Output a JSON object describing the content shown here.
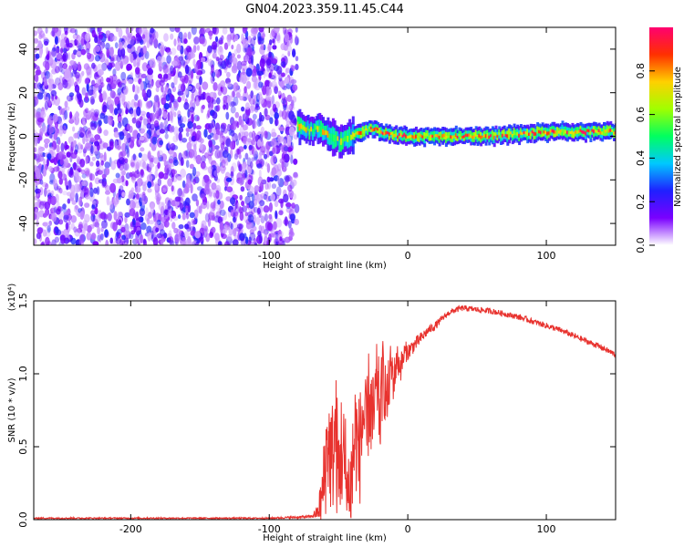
{
  "figure": {
    "title": "GN04.2023.359.11.45.C44"
  },
  "chart_data": [
    {
      "type": "heatmap",
      "xlabel": "Height of straight line (km)",
      "ylabel": "Frequency (Hz)",
      "xlim": [
        -270,
        150
      ],
      "ylim": [
        -50,
        50
      ],
      "x_ticks": [
        -200,
        -100,
        0,
        100
      ],
      "y_ticks": [
        -40,
        -20,
        0,
        20,
        40
      ],
      "noise_region_x": [
        -270,
        -80
      ],
      "signal_track": {
        "x": [
          -80,
          -75,
          -70,
          -65,
          -60,
          -55,
          -50,
          -45,
          -40,
          -35,
          -30,
          -25,
          -20,
          -15,
          -10,
          -5,
          0,
          20,
          40,
          60,
          80,
          100,
          120,
          150
        ],
        "freq": [
          6,
          4,
          3,
          4,
          2,
          0,
          -2,
          -1,
          1,
          2,
          3,
          3,
          2,
          1,
          0,
          0,
          0,
          0,
          0,
          0,
          1,
          2,
          2,
          2
        ]
      },
      "colorbar": {
        "label": "Normalized spectral amplitude",
        "range": [
          0,
          1
        ],
        "ticks": [
          0.0,
          0.2,
          0.4,
          0.6,
          0.8
        ],
        "colors": [
          "#ffffff",
          "#7a00ff",
          "#1f20ff",
          "#00c8ff",
          "#00ff60",
          "#a0ff00",
          "#ffd000",
          "#ff3000",
          "#ff0070"
        ]
      },
      "grid": false
    },
    {
      "type": "line",
      "xlabel": "Height of straight line (km)",
      "ylabel": "SNR (10 * v/v)",
      "y_scale_label": "(x10⁴)",
      "xlim": [
        -270,
        150
      ],
      "ylim": [
        0,
        1.5
      ],
      "x_ticks": [
        -200,
        -100,
        0,
        100
      ],
      "y_ticks": [
        0.0,
        0.5,
        1.0,
        1.5
      ],
      "series": [
        {
          "color": "#e8322e",
          "x": [
            -270,
            -200,
            -100,
            -70,
            -65,
            -62,
            -60,
            -58,
            -55,
            -52,
            -50,
            -48,
            -45,
            -42,
            -40,
            -38,
            -35,
            -32,
            -30,
            -28,
            -25,
            -22,
            -20,
            -18,
            -15,
            -12,
            -10,
            -8,
            -5,
            -2,
            0,
            5,
            10,
            15,
            20,
            25,
            30,
            35,
            40,
            50,
            60,
            70,
            80,
            90,
            100,
            110,
            120,
            130,
            140,
            150
          ],
          "y": [
            0.01,
            0.01,
            0.01,
            0.02,
            0.05,
            0.15,
            0.3,
            0.55,
            0.4,
            0.6,
            0.25,
            0.5,
            0.3,
            0.1,
            0.35,
            0.6,
            0.45,
            0.75,
            0.5,
            0.85,
            0.65,
            0.95,
            0.7,
            1.0,
            0.8,
            1.05,
            0.95,
            1.1,
            1.05,
            1.15,
            1.15,
            1.2,
            1.25,
            1.3,
            1.33,
            1.38,
            1.42,
            1.44,
            1.45,
            1.44,
            1.43,
            1.41,
            1.39,
            1.36,
            1.33,
            1.3,
            1.26,
            1.22,
            1.18,
            1.13
          ],
          "noise_amplitude": [
            0.005,
            0.005,
            0.005,
            0.01,
            0.05,
            0.2,
            0.35,
            0.4,
            0.4,
            0.45,
            0.45,
            0.4,
            0.45,
            0.45,
            0.45,
            0.4,
            0.4,
            0.4,
            0.4,
            0.35,
            0.35,
            0.3,
            0.3,
            0.25,
            0.22,
            0.2,
            0.15,
            0.12,
            0.1,
            0.08,
            0.06,
            0.05,
            0.04,
            0.03,
            0.03,
            0.02,
            0.02,
            0.02,
            0.02,
            0.02,
            0.02,
            0.02,
            0.02,
            0.02,
            0.02,
            0.02,
            0.02,
            0.02,
            0.02,
            0.02
          ]
        }
      ],
      "grid": false
    }
  ]
}
